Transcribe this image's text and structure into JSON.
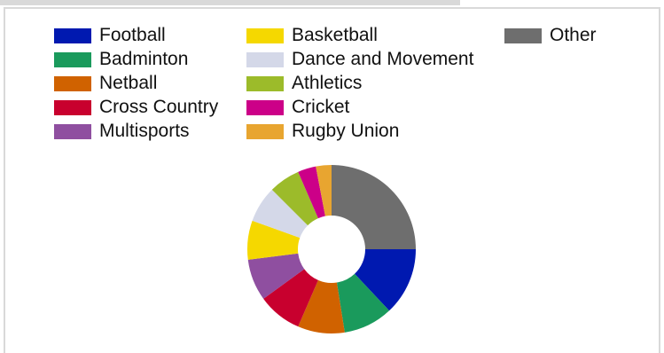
{
  "chart_data": {
    "type": "pie",
    "donut": true,
    "legend_position": "top",
    "slices": [
      {
        "label": "Other",
        "value": 25.0,
        "color": "#6e6e6e"
      },
      {
        "label": "Football",
        "value": 13.0,
        "color": "#0019b0"
      },
      {
        "label": "Badminton",
        "value": 9.5,
        "color": "#1a9a5c"
      },
      {
        "label": "Netball",
        "value": 9.0,
        "color": "#d06200"
      },
      {
        "label": "Cross Country",
        "value": 8.5,
        "color": "#c8002e"
      },
      {
        "label": "Multisports",
        "value": 8.0,
        "color": "#8f4fa0"
      },
      {
        "label": "Basketball",
        "value": 7.5,
        "color": "#f5d800"
      },
      {
        "label": "Dance and Movement",
        "value": 7.0,
        "color": "#d4d8e8"
      },
      {
        "label": "Athletics",
        "value": 6.0,
        "color": "#9cbb2a"
      },
      {
        "label": "Cricket",
        "value": 3.5,
        "color": "#cc0088"
      },
      {
        "label": "Rugby Union",
        "value": 3.0,
        "color": "#e8a530"
      }
    ]
  },
  "legend": [
    {
      "label": "Football",
      "color": "#0019b0"
    },
    {
      "label": "Badminton",
      "color": "#1a9a5c"
    },
    {
      "label": "Netball",
      "color": "#d06200"
    },
    {
      "label": "Cross Country",
      "color": "#c8002e"
    },
    {
      "label": "Multisports",
      "color": "#8f4fa0"
    },
    {
      "label": "Basketball",
      "color": "#f5d800"
    },
    {
      "label": "Dance and Movement",
      "color": "#d4d8e8"
    },
    {
      "label": "Athletics",
      "color": "#9cbb2a"
    },
    {
      "label": "Cricket",
      "color": "#cc0088"
    },
    {
      "label": "Rugby Union",
      "color": "#e8a530"
    },
    {
      "label": "Other",
      "color": "#6e6e6e"
    }
  ]
}
